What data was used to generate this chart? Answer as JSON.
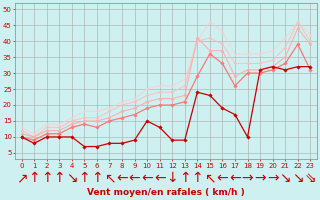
{
  "background_color": "#cef0f0",
  "grid_color": "#aaaaaa",
  "xlabel": "Vent moyen/en rafales ( km/h )",
  "xlabel_color": "#cc0000",
  "xlabel_fontsize": 6.5,
  "ylabel_ticks": [
    5,
    10,
    15,
    20,
    25,
    30,
    35,
    40,
    45,
    50
  ],
  "xlim": [
    -0.5,
    23.5
  ],
  "ylim": [
    3,
    52
  ],
  "xticks": [
    0,
    1,
    2,
    3,
    4,
    5,
    6,
    7,
    8,
    9,
    10,
    11,
    12,
    13,
    14,
    15,
    16,
    17,
    18,
    19,
    20,
    21,
    22,
    23
  ],
  "tick_color": "#cc0000",
  "tick_fontsize": 5,
  "arrow_symbols": [
    "↗",
    "↑",
    "↑",
    "↑",
    "↘",
    "↑",
    "↑",
    "↖",
    "←",
    "←",
    "←",
    "←",
    "↓",
    "↑",
    "↑",
    "↖",
    "←",
    "←",
    "→",
    "→",
    "→",
    "↘",
    "↘",
    "⇘"
  ],
  "lines": [
    {
      "x": [
        0,
        1,
        2,
        3,
        4,
        5,
        6,
        7,
        8,
        9,
        10,
        11,
        12,
        13,
        14,
        15,
        16,
        17,
        18,
        19,
        20,
        21,
        22,
        23
      ],
      "y": [
        10,
        8,
        10,
        10,
        10,
        7,
        7,
        8,
        8,
        9,
        15,
        13,
        9,
        9,
        24,
        23,
        19,
        17,
        10,
        31,
        32,
        31,
        32,
        32
      ],
      "color": "#cc0000",
      "lw": 0.9,
      "marker": "D",
      "ms": 1.8,
      "alpha": 1.0,
      "zorder": 5
    },
    {
      "x": [
        0,
        1,
        2,
        3,
        4,
        5,
        6,
        7,
        8,
        9,
        10,
        11,
        12,
        13,
        14,
        15,
        16,
        17,
        18,
        19,
        20,
        21,
        22,
        23
      ],
      "y": [
        10,
        9,
        11,
        11,
        13,
        14,
        13,
        15,
        16,
        17,
        19,
        20,
        20,
        21,
        29,
        36,
        33,
        26,
        30,
        30,
        31,
        33,
        39,
        31
      ],
      "color": "#ff7777",
      "lw": 0.9,
      "marker": "D",
      "ms": 1.8,
      "alpha": 1.0,
      "zorder": 4
    },
    {
      "x": [
        0,
        1,
        2,
        3,
        4,
        5,
        6,
        7,
        8,
        9,
        10,
        11,
        12,
        13,
        14,
        15,
        16,
        17,
        18,
        19,
        20,
        21,
        22,
        23
      ],
      "y": [
        11,
        10,
        12,
        12,
        14,
        15,
        15,
        16,
        18,
        19,
        21,
        22,
        22,
        23,
        41,
        37,
        37,
        29,
        31,
        31,
        32,
        35,
        44,
        39
      ],
      "color": "#ffaaaa",
      "lw": 0.8,
      "marker": "D",
      "ms": 1.6,
      "alpha": 0.9,
      "zorder": 3
    },
    {
      "x": [
        0,
        1,
        2,
        3,
        4,
        5,
        6,
        7,
        8,
        9,
        10,
        11,
        12,
        13,
        14,
        15,
        16,
        17,
        18,
        19,
        20,
        21,
        22,
        23
      ],
      "y": [
        12,
        10,
        13,
        13,
        15,
        16,
        16,
        18,
        20,
        21,
        23,
        24,
        24,
        26,
        40,
        41,
        39,
        33,
        33,
        33,
        34,
        38,
        46,
        40
      ],
      "color": "#ffbbbb",
      "lw": 0.8,
      "marker": "D",
      "ms": 1.4,
      "alpha": 0.8,
      "zorder": 2
    },
    {
      "x": [
        0,
        1,
        2,
        3,
        4,
        5,
        6,
        7,
        8,
        9,
        10,
        11,
        12,
        13,
        14,
        15,
        16,
        17,
        18,
        19,
        20,
        21,
        22,
        23
      ],
      "y": [
        13,
        11,
        14,
        14,
        16,
        18,
        18,
        19,
        21,
        22,
        25,
        26,
        26,
        28,
        40,
        46,
        43,
        36,
        36,
        36,
        37,
        41,
        46,
        42
      ],
      "color": "#ffcccc",
      "lw": 0.8,
      "marker": "D",
      "ms": 1.2,
      "alpha": 0.7,
      "zorder": 1
    }
  ]
}
